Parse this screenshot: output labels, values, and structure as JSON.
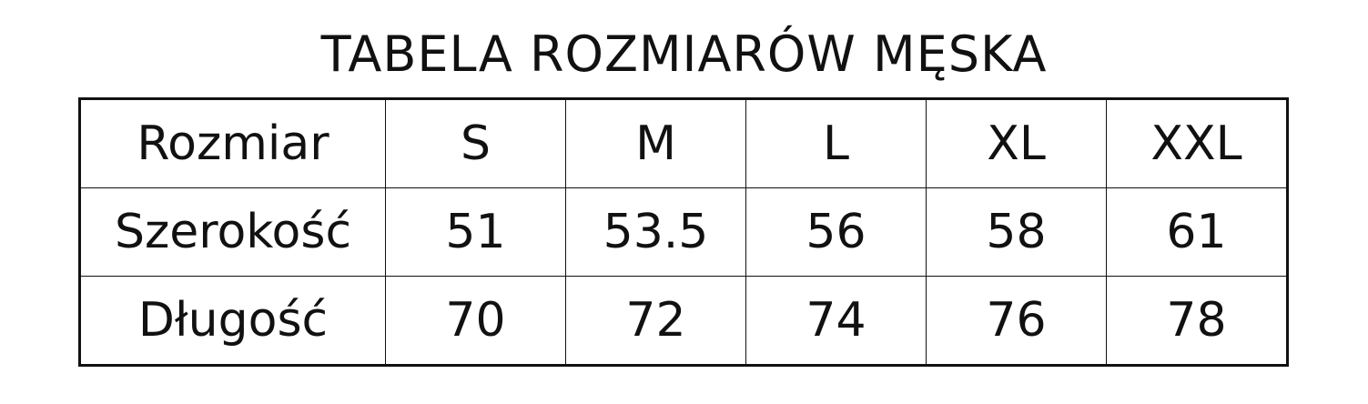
{
  "title": "TABELA ROZMIARÓW MĘSKA",
  "table": {
    "header": [
      "Rozmiar",
      "S",
      "M",
      "L",
      "XL",
      "XXL"
    ],
    "rows": [
      [
        "Szerokość",
        "51",
        "53.5",
        "56",
        "58",
        "61"
      ],
      [
        "Długość",
        "70",
        "72",
        "74",
        "76",
        "78"
      ]
    ]
  }
}
